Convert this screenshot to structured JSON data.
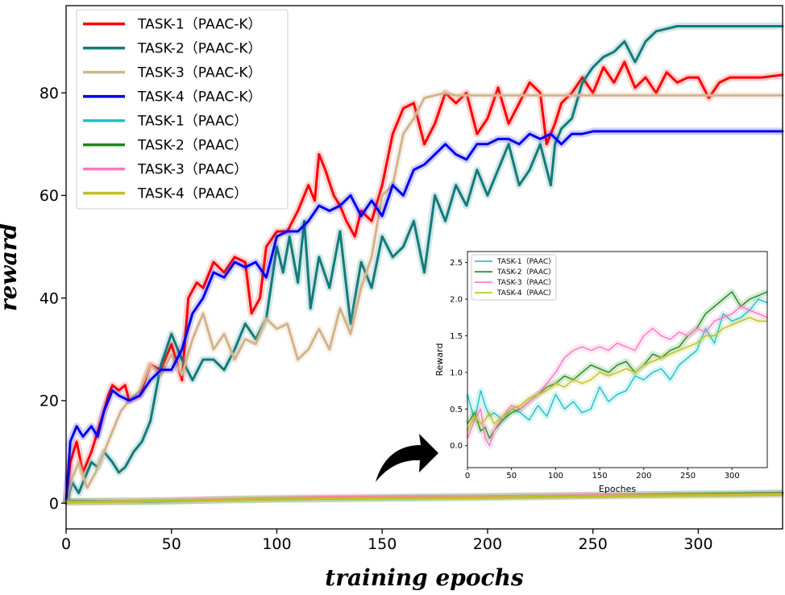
{
  "chart_data": [
    {
      "type": "line",
      "xlabel": "training epochs",
      "ylabel": "reward",
      "xlim": [
        0,
        340
      ],
      "ylim": [
        -5,
        97
      ],
      "xticks": [
        0,
        50,
        100,
        150,
        200,
        250,
        300
      ],
      "yticks": [
        0,
        20,
        40,
        60,
        80
      ],
      "legend_position": "top-left",
      "grid": false,
      "series": [
        {
          "name": "TASK-1（PAAC-K）",
          "color": "#ff0000",
          "x": [
            0,
            2,
            5,
            8,
            12,
            15,
            18,
            20,
            22,
            25,
            28,
            30,
            35,
            40,
            45,
            50,
            55,
            58,
            62,
            65,
            70,
            75,
            80,
            85,
            88,
            92,
            95,
            100,
            105,
            110,
            115,
            118,
            120,
            123,
            127,
            130,
            133,
            137,
            140,
            145,
            150,
            155,
            160,
            165,
            170,
            175,
            180,
            185,
            190,
            195,
            200,
            205,
            210,
            215,
            220,
            225,
            228,
            230,
            232,
            235,
            240,
            245,
            250,
            255,
            260,
            265,
            268,
            270,
            275,
            280,
            285,
            290,
            295,
            300,
            305,
            310,
            315,
            320,
            330,
            340
          ],
          "y": [
            0,
            8,
            12,
            6,
            10,
            14,
            18,
            21,
            23,
            22,
            23,
            20,
            21,
            27,
            26,
            31,
            24,
            40,
            43,
            42,
            47,
            45,
            48,
            47,
            37,
            40,
            50,
            53,
            53,
            57,
            62,
            59,
            68,
            65,
            60,
            58,
            55,
            52,
            57,
            55,
            62,
            72,
            77,
            78,
            70,
            74,
            80,
            78,
            80,
            72,
            75,
            81,
            74,
            78,
            82,
            80,
            70,
            72,
            74,
            78,
            80,
            83,
            80,
            85,
            82,
            86,
            83,
            81,
            83,
            80,
            84,
            82,
            83,
            83,
            79,
            82,
            83,
            83,
            83,
            83.5
          ]
        },
        {
          "name": "TASK-2（PAAC-K）",
          "color": "#127b7b",
          "x": [
            0,
            3,
            6,
            9,
            12,
            15,
            18,
            22,
            25,
            28,
            32,
            36,
            40,
            45,
            50,
            55,
            60,
            65,
            70,
            75,
            80,
            85,
            90,
            95,
            100,
            103,
            106,
            110,
            113,
            116,
            120,
            125,
            130,
            135,
            140,
            145,
            150,
            155,
            160,
            165,
            170,
            175,
            180,
            185,
            190,
            195,
            200,
            205,
            210,
            215,
            220,
            225,
            230,
            232,
            235,
            240,
            245,
            250,
            255,
            260,
            265,
            270,
            275,
            280,
            290,
            300,
            310,
            320,
            340
          ],
          "y": [
            0,
            4,
            2,
            5,
            8,
            7,
            10,
            8,
            6,
            7,
            10,
            12,
            16,
            27,
            33,
            28,
            24,
            28,
            28,
            26,
            30,
            35,
            32,
            36,
            50,
            45,
            52,
            43,
            55,
            38,
            48,
            42,
            53,
            35,
            47,
            42,
            52,
            48,
            50,
            55,
            45,
            60,
            55,
            62,
            58,
            65,
            60,
            65,
            70,
            62,
            65,
            70,
            62,
            70,
            73,
            75,
            82,
            85,
            87,
            88,
            90,
            86,
            90,
            92,
            93,
            93,
            93,
            93,
            93
          ]
        },
        {
          "name": "TASK-3（PAAC-K）",
          "color": "#d2b48c",
          "x": [
            0,
            3,
            6,
            10,
            14,
            18,
            22,
            26,
            30,
            35,
            40,
            45,
            50,
            55,
            60,
            65,
            70,
            75,
            80,
            85,
            90,
            95,
            100,
            105,
            110,
            115,
            120,
            125,
            130,
            135,
            140,
            145,
            150,
            155,
            160,
            165,
            170,
            175,
            180,
            185,
            190,
            200,
            210,
            220,
            230,
            240,
            250,
            260,
            270,
            280,
            290,
            300,
            310,
            320,
            340
          ],
          "y": [
            0,
            5,
            8,
            3,
            6,
            10,
            14,
            18,
            20,
            22,
            27,
            25,
            29,
            25,
            32,
            37,
            30,
            33,
            28,
            32,
            31,
            36,
            34,
            35,
            28,
            30,
            34,
            30,
            38,
            33,
            42,
            48,
            60,
            62,
            72,
            75,
            79,
            79.5,
            80,
            79.5,
            79.5,
            79.5,
            79.5,
            79.5,
            79.5,
            79.5,
            79.5,
            79.5,
            79.5,
            79.5,
            79.5,
            79.5,
            79.5,
            79.5,
            79.5
          ]
        },
        {
          "name": "TASK-4（PAAC-K）",
          "color": "#0000ee",
          "x": [
            0,
            2,
            5,
            8,
            12,
            15,
            18,
            20,
            22,
            25,
            30,
            35,
            40,
            45,
            50,
            55,
            60,
            65,
            70,
            75,
            80,
            85,
            90,
            95,
            100,
            105,
            110,
            115,
            120,
            125,
            130,
            135,
            140,
            145,
            150,
            155,
            160,
            165,
            170,
            175,
            180,
            185,
            190,
            195,
            200,
            205,
            210,
            215,
            220,
            225,
            230,
            235,
            240,
            245,
            250,
            260,
            270,
            280,
            290,
            300,
            310,
            320,
            340
          ],
          "y": [
            0,
            12,
            15,
            13,
            15,
            13,
            18,
            20,
            22,
            21,
            20,
            21,
            24,
            26,
            26,
            30,
            37,
            40,
            45,
            44,
            47,
            46,
            47,
            44,
            52,
            53,
            53,
            55,
            58,
            57,
            58,
            60,
            56,
            59,
            56,
            62,
            60,
            65,
            66,
            68,
            70,
            68,
            67,
            70,
            70,
            71,
            71,
            70,
            72,
            71,
            72,
            70,
            72,
            72,
            72.5,
            72.5,
            72.5,
            72.5,
            72.5,
            72.5,
            72.5,
            72.5,
            72.5
          ]
        },
        {
          "name": "TASK-1（PAAC）",
          "color": "#20c0c8",
          "x": [
            0,
            40,
            80,
            120,
            160,
            200,
            240,
            280,
            320,
            340
          ],
          "y": [
            0.5,
            0.3,
            0.8,
            0.9,
            1.0,
            1.2,
            1.4,
            1.7,
            1.8,
            2.0
          ]
        },
        {
          "name": "TASK-2（PAAC）",
          "color": "#1a8a1a",
          "x": [
            0,
            40,
            80,
            120,
            160,
            200,
            240,
            280,
            320,
            340
          ],
          "y": [
            0.3,
            0.4,
            0.7,
            0.9,
            1.1,
            1.3,
            1.5,
            1.7,
            1.9,
            2.0
          ]
        },
        {
          "name": "TASK-3（PAAC）",
          "color": "#ff77c0",
          "x": [
            0,
            40,
            80,
            120,
            160,
            200,
            240,
            280,
            320,
            340
          ],
          "y": [
            0.2,
            0.5,
            0.8,
            1.2,
            1.3,
            1.3,
            1.5,
            1.6,
            1.7,
            1.8
          ]
        },
        {
          "name": "TASK-4（PAAC）",
          "color": "#c0c020",
          "x": [
            0,
            40,
            80,
            120,
            160,
            200,
            240,
            280,
            320,
            340
          ],
          "y": [
            0.2,
            0.4,
            0.7,
            0.9,
            1.0,
            1.1,
            1.3,
            1.5,
            1.6,
            1.7
          ]
        }
      ]
    },
    {
      "type": "line",
      "xlabel": "Epoches",
      "ylabel": "Reward",
      "xlim": [
        0,
        340
      ],
      "ylim": [
        -0.3,
        2.65
      ],
      "xticks": [
        0,
        50,
        100,
        150,
        200,
        250,
        300
      ],
      "yticks": [
        0.0,
        0.5,
        1.0,
        1.5,
        2.0,
        2.5
      ],
      "legend_position": "top-left",
      "series": [
        {
          "name": "TASK-1（PAAC）",
          "color": "#20c0c8",
          "x": [
            0,
            8,
            15,
            20,
            25,
            30,
            40,
            50,
            60,
            70,
            80,
            90,
            100,
            110,
            120,
            130,
            140,
            150,
            160,
            170,
            180,
            190,
            200,
            210,
            220,
            230,
            240,
            250,
            260,
            270,
            280,
            290,
            300,
            310,
            320,
            330,
            340
          ],
          "y": [
            0.7,
            0.35,
            0.75,
            0.55,
            0.4,
            0.45,
            0.35,
            0.5,
            0.45,
            0.35,
            0.55,
            0.4,
            0.7,
            0.5,
            0.6,
            0.45,
            0.5,
            0.8,
            0.6,
            0.7,
            0.75,
            0.95,
            0.9,
            1.0,
            1.05,
            0.9,
            1.1,
            1.2,
            1.3,
            1.6,
            1.4,
            1.8,
            1.7,
            1.75,
            1.85,
            2.0,
            1.95
          ]
        },
        {
          "name": "TASK-2（PAAC）",
          "color": "#1a8a1a",
          "x": [
            0,
            8,
            15,
            20,
            25,
            30,
            40,
            50,
            60,
            70,
            80,
            90,
            100,
            110,
            120,
            130,
            140,
            150,
            160,
            170,
            180,
            190,
            200,
            210,
            220,
            230,
            240,
            250,
            260,
            270,
            280,
            290,
            300,
            310,
            320,
            330,
            340
          ],
          "y": [
            0.3,
            0.45,
            0.2,
            0.25,
            0.1,
            0.2,
            0.35,
            0.45,
            0.5,
            0.6,
            0.7,
            0.8,
            0.85,
            0.95,
            0.9,
            1.0,
            1.1,
            1.05,
            1.0,
            1.1,
            1.15,
            1.0,
            1.1,
            1.25,
            1.2,
            1.3,
            1.35,
            1.5,
            1.6,
            1.8,
            1.9,
            2.0,
            2.1,
            1.9,
            2.0,
            2.05,
            2.1
          ]
        },
        {
          "name": "TASK-3（PAAC）",
          "color": "#ff77c0",
          "x": [
            0,
            8,
            15,
            20,
            25,
            30,
            40,
            50,
            60,
            70,
            80,
            90,
            100,
            110,
            120,
            130,
            140,
            150,
            160,
            170,
            180,
            190,
            200,
            210,
            220,
            230,
            240,
            250,
            260,
            270,
            280,
            290,
            300,
            310,
            320,
            330,
            340
          ],
          "y": [
            0.1,
            0.35,
            0.5,
            0.1,
            0.0,
            0.2,
            0.4,
            0.55,
            0.5,
            0.6,
            0.7,
            0.85,
            1.0,
            1.2,
            1.3,
            1.35,
            1.3,
            1.35,
            1.3,
            1.4,
            1.35,
            1.3,
            1.5,
            1.6,
            1.5,
            1.45,
            1.55,
            1.5,
            1.6,
            1.55,
            1.7,
            1.75,
            1.8,
            1.9,
            1.85,
            1.8,
            1.75
          ]
        },
        {
          "name": "TASK-4（PAAC）",
          "color": "#c0c020",
          "x": [
            0,
            8,
            15,
            20,
            25,
            30,
            40,
            50,
            60,
            70,
            80,
            90,
            100,
            110,
            120,
            130,
            140,
            150,
            160,
            170,
            180,
            190,
            200,
            210,
            220,
            230,
            240,
            250,
            260,
            270,
            280,
            290,
            300,
            310,
            320,
            330,
            340
          ],
          "y": [
            0.2,
            0.4,
            0.3,
            0.35,
            0.45,
            0.3,
            0.4,
            0.5,
            0.55,
            0.65,
            0.7,
            0.75,
            0.85,
            0.8,
            0.9,
            0.85,
            0.9,
            1.0,
            0.95,
            1.0,
            1.05,
            1.0,
            1.1,
            1.15,
            1.2,
            1.25,
            1.3,
            1.35,
            1.4,
            1.5,
            1.5,
            1.6,
            1.65,
            1.7,
            1.75,
            1.7,
            1.7
          ]
        }
      ]
    }
  ]
}
